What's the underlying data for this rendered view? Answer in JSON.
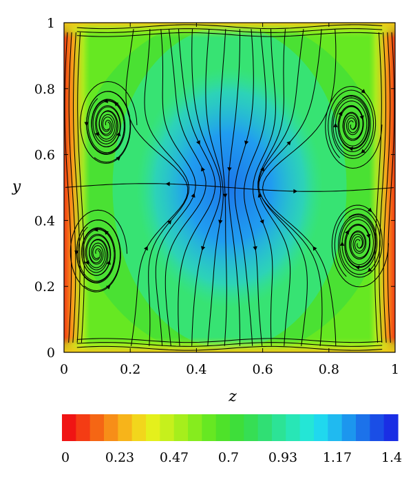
{
  "chart_data": {
    "type": "heatmap",
    "title": "",
    "xlabel": "z",
    "ylabel": "y",
    "xlim": [
      0,
      1
    ],
    "ylim": [
      0,
      1
    ],
    "xticks": [
      "0",
      "0.2",
      "0.4",
      "0.6",
      "0.8",
      "1"
    ],
    "yticks": [
      "0",
      "0.2",
      "0.4",
      "0.6",
      "0.8",
      "1"
    ],
    "grid": false,
    "overlay": "streamlines",
    "colorbar": {
      "orientation": "horizontal",
      "placement": "bottom",
      "range": [
        0,
        1.4
      ],
      "tick_labels": [
        "0",
        "0.23",
        "0.47",
        "0.7",
        "0.93",
        "1.17",
        "1.4"
      ],
      "colors": [
        "#f01414",
        "#f43c14",
        "#f56614",
        "#f78e18",
        "#f7b41a",
        "#f2d61c",
        "#e4f01c",
        "#c6f01c",
        "#a6ee1c",
        "#86ec1e",
        "#66e822",
        "#4ee22a",
        "#3ede3a",
        "#36de54",
        "#30df74",
        "#2ce396",
        "#28e6b6",
        "#24e6d6",
        "#20d8ee",
        "#20baf0",
        "#1c96ee",
        "#1c72ea",
        "#1a4ee6",
        "#1a2ee4"
      ]
    },
    "field": {
      "description_values_at": "(z, y) sample points of the colored magnitude field",
      "points": [
        {
          "z": 0.02,
          "y": 0.5,
          "value": 0.15
        },
        {
          "z": 0.98,
          "y": 0.5,
          "value": 0.15
        },
        {
          "z": 0.5,
          "y": 0.02,
          "value": 0.55
        },
        {
          "z": 0.5,
          "y": 0.98,
          "value": 0.6
        },
        {
          "z": 0.2,
          "y": 0.8,
          "value": 0.75
        },
        {
          "z": 0.8,
          "y": 0.8,
          "value": 0.75
        },
        {
          "z": 0.2,
          "y": 0.25,
          "value": 0.72
        },
        {
          "z": 0.8,
          "y": 0.25,
          "value": 0.72
        },
        {
          "z": 0.5,
          "y": 0.5,
          "value": 1.25
        },
        {
          "z": 0.5,
          "y": 0.65,
          "value": 1.05
        },
        {
          "z": 0.5,
          "y": 0.35,
          "value": 1.05
        }
      ]
    },
    "vortices": [
      {
        "z": 0.13,
        "y": 0.69
      },
      {
        "z": 0.87,
        "y": 0.69
      },
      {
        "z": 0.1,
        "y": 0.3
      },
      {
        "z": 0.89,
        "y": 0.33
      }
    ]
  }
}
